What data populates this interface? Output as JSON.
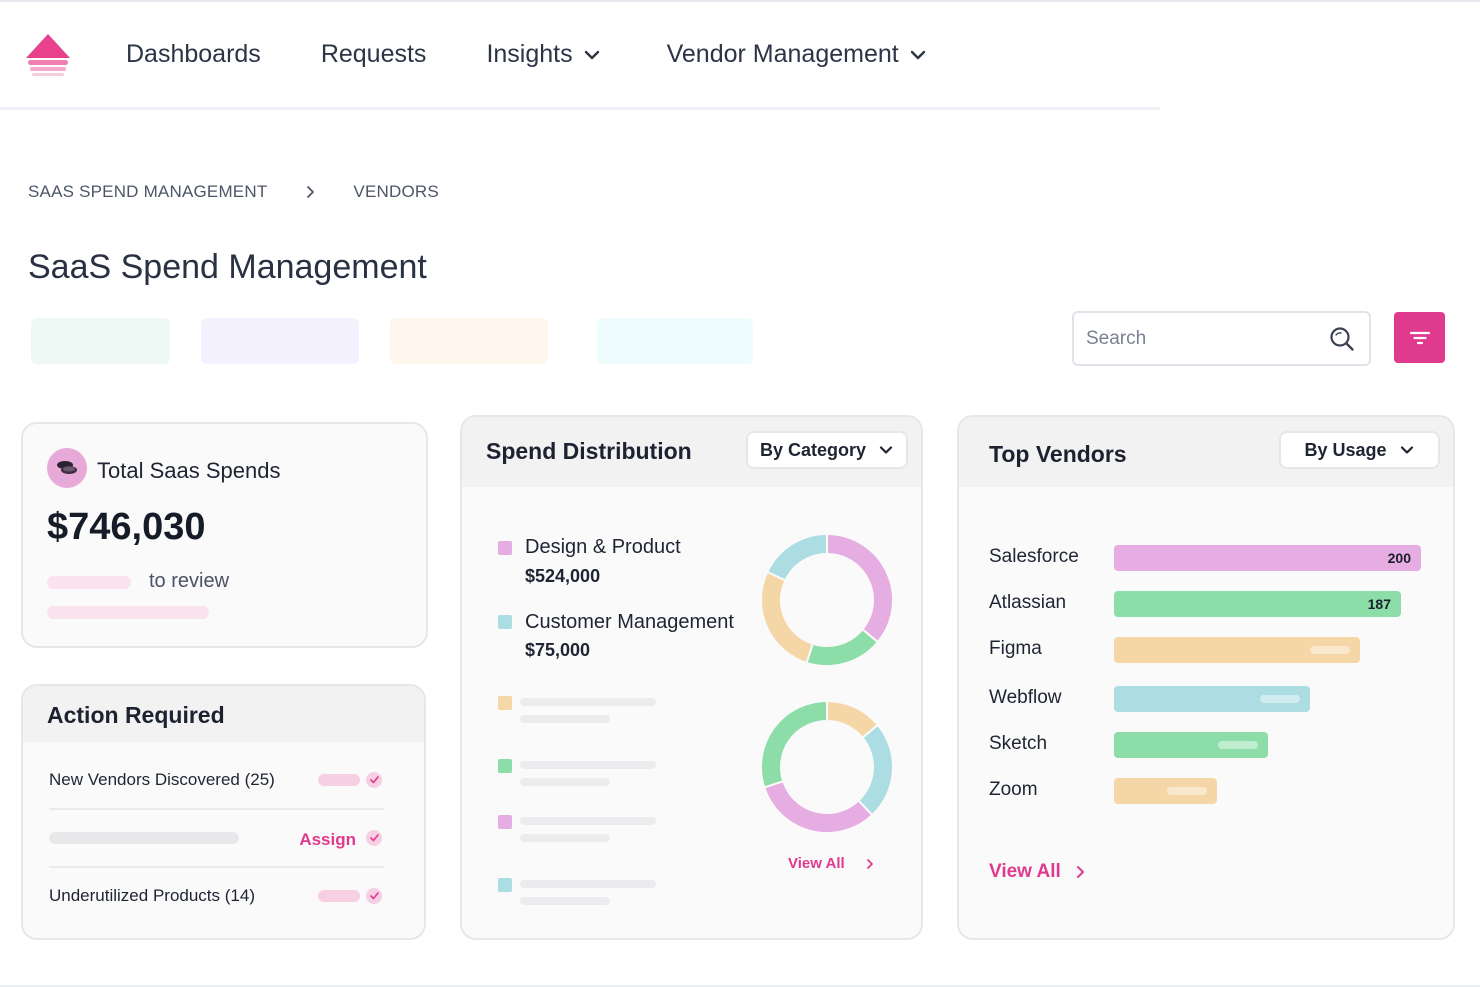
{
  "nav": {
    "items": [
      {
        "label": "Dashboards",
        "has_dropdown": false
      },
      {
        "label": "Requests",
        "has_dropdown": false
      },
      {
        "label": "Insights",
        "has_dropdown": true
      },
      {
        "label": "Vendor Management",
        "has_dropdown": true
      }
    ]
  },
  "breadcrumb": {
    "items": [
      "SAAS SPEND MANAGEMENT",
      "VENDORS"
    ]
  },
  "page": {
    "title": "SaaS Spend Management"
  },
  "search": {
    "placeholder": "Search",
    "value": ""
  },
  "colors": {
    "accent": "#e03a8e",
    "pink": "#e6ade3",
    "blue": "#acdde3",
    "orange": "#f5d6a6",
    "green": "#8cdda8",
    "chip_colors": [
      "#eef9f6",
      "#f4f2fe",
      "#fff6ee",
      "#effcfd"
    ]
  },
  "total_spends": {
    "label": "Total Saas Spends",
    "value": "$746,030",
    "review_text": "to review"
  },
  "action_required": {
    "title": "Action Required",
    "rows": [
      {
        "text": "New Vendors Discovered (25)",
        "action": ""
      },
      {
        "text": "",
        "action": "Assign"
      },
      {
        "text": "Underutilized Products (14)",
        "action": ""
      }
    ]
  },
  "spend_distribution": {
    "title": "Spend Distribution",
    "dropdown": "By Category",
    "legend": [
      {
        "name": "Design & Product",
        "amount": "$524,000",
        "color": "#e6ade3"
      },
      {
        "name": "Customer Management",
        "amount": "$75,000",
        "color": "#acdde3"
      }
    ],
    "view_all": "View All"
  },
  "top_vendors": {
    "title": "Top Vendors",
    "dropdown": "By Usage",
    "view_all": "View All"
  },
  "chart_data": [
    {
      "type": "pie",
      "title": "",
      "labels": [
        "",
        "",
        "",
        ""
      ],
      "values": [
        36,
        19,
        27,
        18
      ],
      "colors": [
        "#e6ade3",
        "#8cdda8",
        "#f5d6a6",
        "#acdde3"
      ]
    },
    {
      "type": "pie",
      "title": "",
      "labels": [
        "",
        "",
        "",
        ""
      ],
      "values": [
        14,
        24,
        32,
        30
      ],
      "colors": [
        "#f5d6a6",
        "#acdde3",
        "#e6ade3",
        "#8cdda8"
      ]
    },
    {
      "type": "bar",
      "title": "",
      "categories": [
        "Salesforce",
        "Atlassian",
        "Figma",
        "Webflow",
        "Sketch",
        "Zoom"
      ],
      "values": [
        200,
        187,
        160,
        128,
        100,
        67
      ],
      "data_labels": [
        "200",
        "187",
        "",
        "",
        "",
        ""
      ],
      "colors": [
        "#e6ade3",
        "#8cdda8",
        "#f5d6a6",
        "#acdde3",
        "#8cdda8",
        "#f5d6a6"
      ],
      "xlim": [
        0,
        200
      ]
    }
  ]
}
